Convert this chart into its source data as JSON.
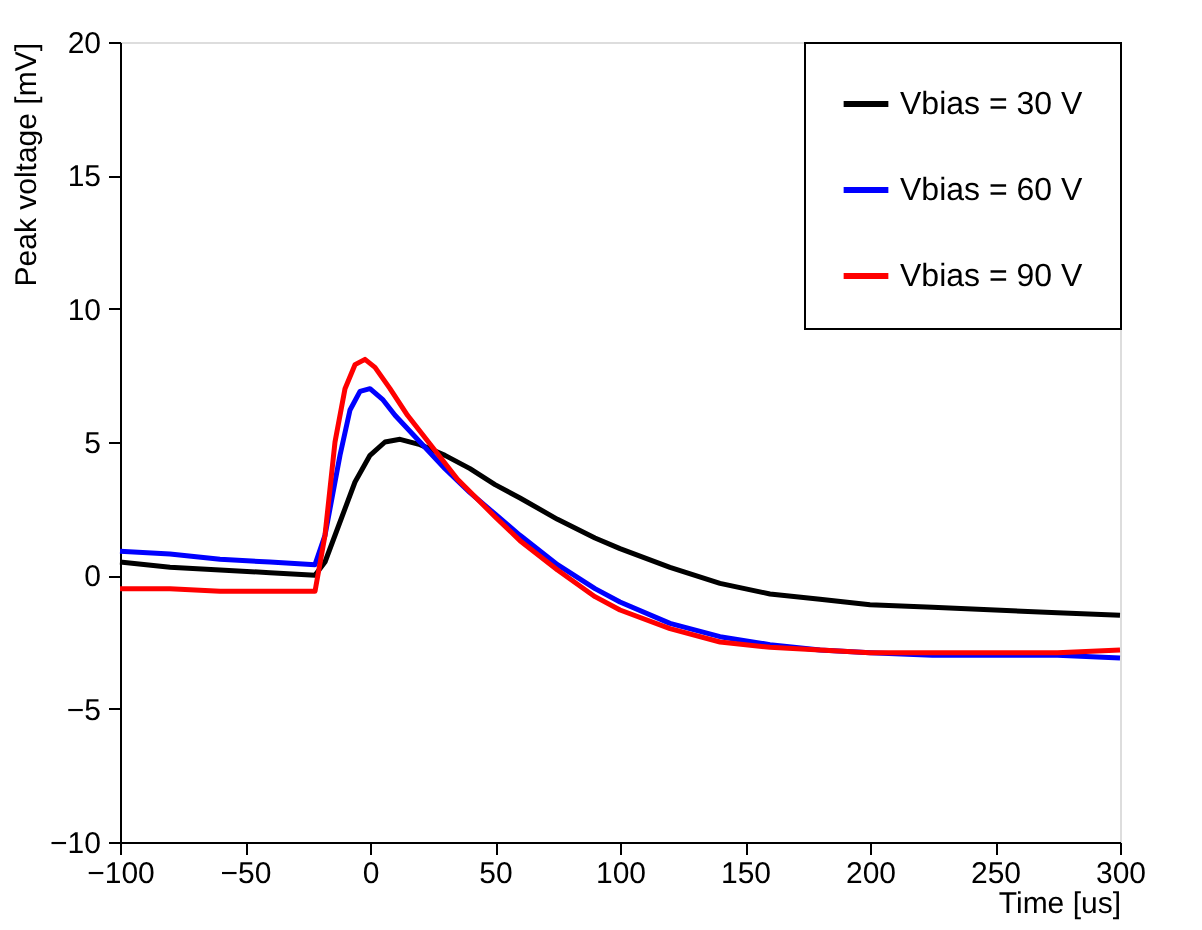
{
  "chart_data": {
    "type": "line",
    "xlabel": "Time [us]",
    "ylabel": "Peak voltage [mV]",
    "xlim": [
      -100,
      300
    ],
    "xticks": [
      -100,
      -50,
      0,
      50,
      100,
      150,
      200,
      250,
      300
    ],
    "ylim": [
      -10,
      20
    ],
    "yticks": [
      -10,
      -5,
      0,
      5,
      10,
      15,
      20
    ],
    "grid": false,
    "legend": "top right",
    "marker": "none",
    "line_style": "solid",
    "series": [
      {
        "name": "Vbias = 30 V",
        "color": "#000000",
        "x": [
          -100,
          -80,
          -60,
          -40,
          -22,
          -18,
          -12,
          -6,
          0,
          6,
          12,
          20,
          30,
          40,
          50,
          60,
          75,
          90,
          100,
          120,
          140,
          160,
          180,
          200,
          225,
          250,
          275,
          300
        ],
        "values": [
          0.5,
          0.3,
          0.2,
          0.1,
          0.0,
          0.5,
          2.0,
          3.5,
          4.5,
          5.0,
          5.1,
          4.9,
          4.5,
          4.0,
          3.4,
          2.9,
          2.1,
          1.4,
          1.0,
          0.3,
          -0.3,
          -0.7,
          -0.9,
          -1.1,
          -1.2,
          -1.3,
          -1.4,
          -1.5
        ]
      },
      {
        "name": "Vbias = 60 V",
        "color": "#0000ff",
        "x": [
          -100,
          -80,
          -60,
          -40,
          -22,
          -18,
          -12,
          -8,
          -4,
          0,
          5,
          10,
          20,
          30,
          40,
          50,
          60,
          75,
          90,
          100,
          120,
          140,
          160,
          180,
          200,
          225,
          250,
          275,
          300
        ],
        "values": [
          0.9,
          0.8,
          0.6,
          0.5,
          0.4,
          1.5,
          4.5,
          6.2,
          6.9,
          7.0,
          6.6,
          6.0,
          5.0,
          4.0,
          3.1,
          2.3,
          1.5,
          0.4,
          -0.5,
          -1.0,
          -1.8,
          -2.3,
          -2.6,
          -2.8,
          -2.9,
          -3.0,
          -3.0,
          -3.0,
          -3.1
        ]
      },
      {
        "name": "Vbias = 90 V",
        "color": "#ff0000",
        "x": [
          -100,
          -80,
          -60,
          -40,
          -22,
          -18,
          -14,
          -10,
          -6,
          -2,
          2,
          8,
          15,
          25,
          35,
          50,
          60,
          75,
          90,
          100,
          120,
          140,
          160,
          180,
          200,
          225,
          250,
          275,
          300
        ],
        "values": [
          -0.5,
          -0.5,
          -0.6,
          -0.6,
          -0.6,
          1.5,
          5.0,
          7.0,
          7.9,
          8.1,
          7.8,
          7.0,
          6.0,
          4.8,
          3.6,
          2.2,
          1.3,
          0.2,
          -0.8,
          -1.3,
          -2.0,
          -2.5,
          -2.7,
          -2.8,
          -2.9,
          -2.9,
          -2.9,
          -2.9,
          -2.8
        ]
      }
    ]
  }
}
